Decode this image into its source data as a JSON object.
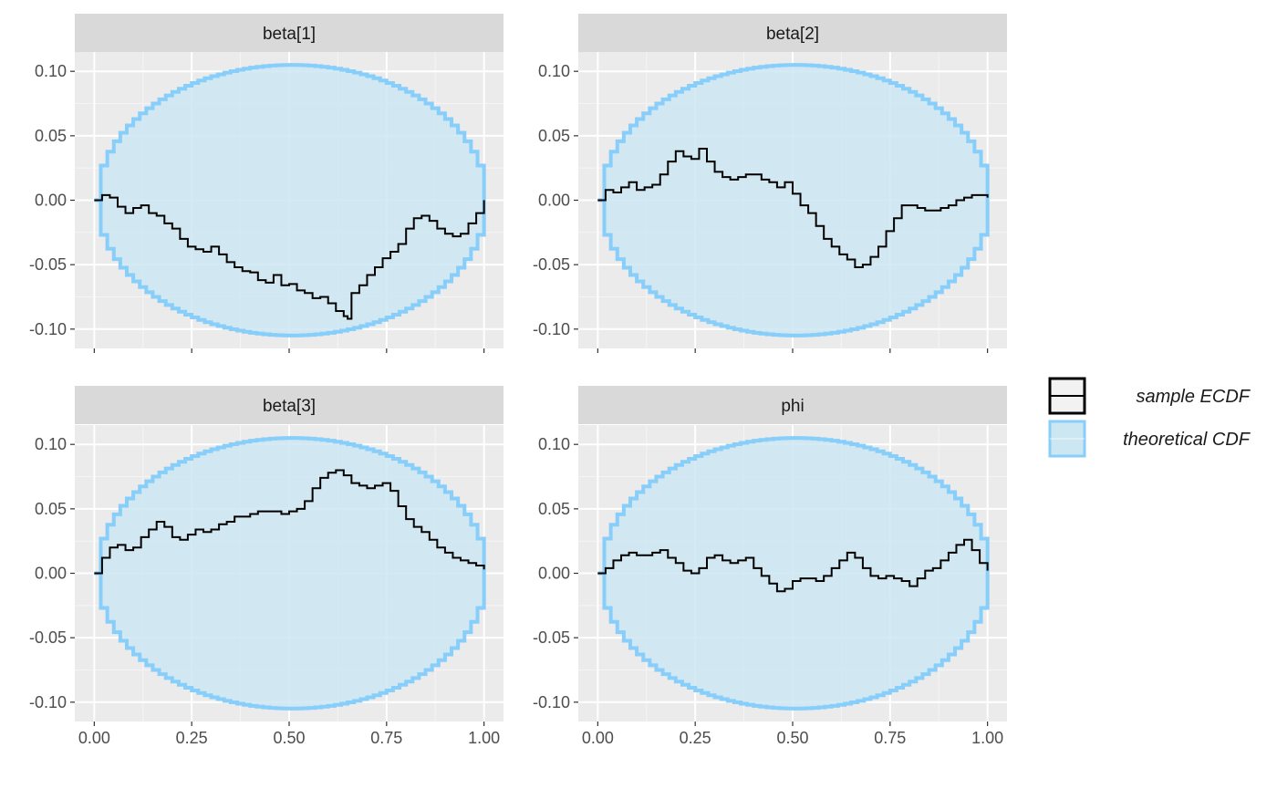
{
  "chart_data": {
    "type": "line",
    "facet_layout": "2x2",
    "grid": true,
    "legend_position": "right",
    "xlim": [
      -0.05,
      1.05
    ],
    "ylim": [
      -0.115,
      0.115
    ],
    "x_ticks": [
      0.0,
      0.25,
      0.5,
      0.75,
      1.0
    ],
    "x_tick_labels": [
      "0.00",
      "0.25",
      "0.50",
      "0.75",
      "1.00"
    ],
    "y_ticks": [
      0.1,
      0.05,
      0.0,
      -0.05,
      -0.1
    ],
    "y_tick_labels": [
      "0.10",
      "0.05",
      "0.00",
      "-0.05",
      "-0.10"
    ],
    "legend": [
      {
        "label": "sample ECDF",
        "kind": "line",
        "color": "#000000"
      },
      {
        "label": "theoretical CDF",
        "kind": "band",
        "color": "#87cefa",
        "fill": "#cce6f2"
      }
    ],
    "band_halfwidth": 0.105,
    "colors": {
      "panel_bg": "#ebebeb",
      "strip_bg": "#d9d9d9",
      "grid_major": "#ffffff",
      "band_fill": "#cce6f2",
      "band_edge": "#87cefa",
      "ecdf": "#000000"
    },
    "panels": [
      {
        "title": "beta[1]",
        "points": [
          [
            0,
            0
          ],
          [
            0.02,
            0.004
          ],
          [
            0.04,
            0.002
          ],
          [
            0.06,
            -0.005
          ],
          [
            0.08,
            -0.01
          ],
          [
            0.1,
            -0.006
          ],
          [
            0.12,
            -0.004
          ],
          [
            0.14,
            -0.01
          ],
          [
            0.16,
            -0.012
          ],
          [
            0.18,
            -0.018
          ],
          [
            0.2,
            -0.022
          ],
          [
            0.22,
            -0.03
          ],
          [
            0.24,
            -0.036
          ],
          [
            0.26,
            -0.038
          ],
          [
            0.28,
            -0.04
          ],
          [
            0.3,
            -0.036
          ],
          [
            0.32,
            -0.042
          ],
          [
            0.34,
            -0.048
          ],
          [
            0.36,
            -0.052
          ],
          [
            0.38,
            -0.055
          ],
          [
            0.4,
            -0.056
          ],
          [
            0.42,
            -0.062
          ],
          [
            0.44,
            -0.064
          ],
          [
            0.46,
            -0.058
          ],
          [
            0.48,
            -0.066
          ],
          [
            0.5,
            -0.065
          ],
          [
            0.52,
            -0.07
          ],
          [
            0.54,
            -0.072
          ],
          [
            0.56,
            -0.076
          ],
          [
            0.58,
            -0.075
          ],
          [
            0.6,
            -0.08
          ],
          [
            0.62,
            -0.086
          ],
          [
            0.64,
            -0.09
          ],
          [
            0.65,
            -0.092
          ],
          [
            0.66,
            -0.072
          ],
          [
            0.68,
            -0.066
          ],
          [
            0.7,
            -0.058
          ],
          [
            0.72,
            -0.052
          ],
          [
            0.74,
            -0.045
          ],
          [
            0.76,
            -0.04
          ],
          [
            0.78,
            -0.034
          ],
          [
            0.8,
            -0.022
          ],
          [
            0.82,
            -0.014
          ],
          [
            0.84,
            -0.012
          ],
          [
            0.86,
            -0.016
          ],
          [
            0.88,
            -0.022
          ],
          [
            0.9,
            -0.026
          ],
          [
            0.92,
            -0.028
          ],
          [
            0.94,
            -0.026
          ],
          [
            0.96,
            -0.018
          ],
          [
            0.98,
            -0.01
          ],
          [
            1.0,
            0.0
          ]
        ]
      },
      {
        "title": "beta[2]",
        "points": [
          [
            0,
            0
          ],
          [
            0.02,
            0.008
          ],
          [
            0.04,
            0.006
          ],
          [
            0.06,
            0.01
          ],
          [
            0.08,
            0.014
          ],
          [
            0.1,
            0.008
          ],
          [
            0.12,
            0.01
          ],
          [
            0.14,
            0.012
          ],
          [
            0.16,
            0.02
          ],
          [
            0.18,
            0.03
          ],
          [
            0.2,
            0.038
          ],
          [
            0.22,
            0.034
          ],
          [
            0.24,
            0.032
          ],
          [
            0.26,
            0.04
          ],
          [
            0.28,
            0.03
          ],
          [
            0.3,
            0.022
          ],
          [
            0.32,
            0.018
          ],
          [
            0.34,
            0.016
          ],
          [
            0.36,
            0.018
          ],
          [
            0.38,
            0.02
          ],
          [
            0.4,
            0.02
          ],
          [
            0.42,
            0.016
          ],
          [
            0.44,
            0.014
          ],
          [
            0.46,
            0.01
          ],
          [
            0.48,
            0.014
          ],
          [
            0.5,
            0.005
          ],
          [
            0.52,
            -0.004
          ],
          [
            0.54,
            -0.01
          ],
          [
            0.56,
            -0.02
          ],
          [
            0.58,
            -0.03
          ],
          [
            0.6,
            -0.036
          ],
          [
            0.62,
            -0.042
          ],
          [
            0.64,
            -0.046
          ],
          [
            0.66,
            -0.052
          ],
          [
            0.68,
            -0.05
          ],
          [
            0.7,
            -0.044
          ],
          [
            0.72,
            -0.036
          ],
          [
            0.74,
            -0.024
          ],
          [
            0.76,
            -0.014
          ],
          [
            0.78,
            -0.004
          ],
          [
            0.8,
            -0.004
          ],
          [
            0.82,
            -0.006
          ],
          [
            0.84,
            -0.008
          ],
          [
            0.86,
            -0.008
          ],
          [
            0.88,
            -0.006
          ],
          [
            0.9,
            -0.004
          ],
          [
            0.92,
            0.0
          ],
          [
            0.94,
            0.002
          ],
          [
            0.96,
            0.004
          ],
          [
            0.98,
            0.004
          ],
          [
            1.0,
            0.002
          ]
        ]
      },
      {
        "title": "beta[3]",
        "points": [
          [
            0,
            0
          ],
          [
            0.02,
            0.012
          ],
          [
            0.04,
            0.02
          ],
          [
            0.06,
            0.022
          ],
          [
            0.08,
            0.018
          ],
          [
            0.1,
            0.02
          ],
          [
            0.12,
            0.028
          ],
          [
            0.14,
            0.034
          ],
          [
            0.16,
            0.04
          ],
          [
            0.18,
            0.036
          ],
          [
            0.2,
            0.028
          ],
          [
            0.22,
            0.026
          ],
          [
            0.24,
            0.03
          ],
          [
            0.26,
            0.034
          ],
          [
            0.28,
            0.032
          ],
          [
            0.3,
            0.034
          ],
          [
            0.32,
            0.038
          ],
          [
            0.34,
            0.04
          ],
          [
            0.36,
            0.044
          ],
          [
            0.38,
            0.044
          ],
          [
            0.4,
            0.046
          ],
          [
            0.42,
            0.048
          ],
          [
            0.44,
            0.048
          ],
          [
            0.46,
            0.048
          ],
          [
            0.48,
            0.046
          ],
          [
            0.5,
            0.048
          ],
          [
            0.52,
            0.05
          ],
          [
            0.54,
            0.056
          ],
          [
            0.56,
            0.066
          ],
          [
            0.58,
            0.074
          ],
          [
            0.6,
            0.078
          ],
          [
            0.62,
            0.08
          ],
          [
            0.64,
            0.076
          ],
          [
            0.66,
            0.07
          ],
          [
            0.68,
            0.068
          ],
          [
            0.7,
            0.066
          ],
          [
            0.72,
            0.068
          ],
          [
            0.74,
            0.07
          ],
          [
            0.76,
            0.064
          ],
          [
            0.78,
            0.052
          ],
          [
            0.8,
            0.042
          ],
          [
            0.82,
            0.036
          ],
          [
            0.84,
            0.032
          ],
          [
            0.86,
            0.026
          ],
          [
            0.88,
            0.02
          ],
          [
            0.9,
            0.016
          ],
          [
            0.92,
            0.012
          ],
          [
            0.94,
            0.01
          ],
          [
            0.96,
            0.008
          ],
          [
            0.98,
            0.006
          ],
          [
            1.0,
            0.003
          ]
        ]
      },
      {
        "title": "phi",
        "points": [
          [
            0,
            0
          ],
          [
            0.02,
            0.004
          ],
          [
            0.04,
            0.01
          ],
          [
            0.06,
            0.014
          ],
          [
            0.08,
            0.016
          ],
          [
            0.1,
            0.014
          ],
          [
            0.12,
            0.014
          ],
          [
            0.14,
            0.016
          ],
          [
            0.16,
            0.018
          ],
          [
            0.18,
            0.012
          ],
          [
            0.2,
            0.008
          ],
          [
            0.22,
            0.002
          ],
          [
            0.24,
            0.0
          ],
          [
            0.26,
            0.004
          ],
          [
            0.28,
            0.012
          ],
          [
            0.3,
            0.014
          ],
          [
            0.32,
            0.01
          ],
          [
            0.34,
            0.008
          ],
          [
            0.36,
            0.01
          ],
          [
            0.38,
            0.012
          ],
          [
            0.4,
            0.004
          ],
          [
            0.42,
            -0.002
          ],
          [
            0.44,
            -0.008
          ],
          [
            0.46,
            -0.014
          ],
          [
            0.48,
            -0.012
          ],
          [
            0.5,
            -0.006
          ],
          [
            0.52,
            -0.004
          ],
          [
            0.54,
            -0.004
          ],
          [
            0.56,
            -0.006
          ],
          [
            0.58,
            -0.002
          ],
          [
            0.6,
            0.004
          ],
          [
            0.62,
            0.01
          ],
          [
            0.64,
            0.016
          ],
          [
            0.66,
            0.012
          ],
          [
            0.68,
            0.004
          ],
          [
            0.7,
            -0.002
          ],
          [
            0.72,
            -0.004
          ],
          [
            0.74,
            -0.002
          ],
          [
            0.76,
            -0.004
          ],
          [
            0.78,
            -0.006
          ],
          [
            0.8,
            -0.01
          ],
          [
            0.82,
            -0.004
          ],
          [
            0.84,
            0.002
          ],
          [
            0.86,
            0.004
          ],
          [
            0.88,
            0.01
          ],
          [
            0.9,
            0.016
          ],
          [
            0.92,
            0.022
          ],
          [
            0.94,
            0.026
          ],
          [
            0.96,
            0.018
          ],
          [
            0.98,
            0.008
          ],
          [
            1.0,
            0.002
          ]
        ]
      }
    ]
  }
}
